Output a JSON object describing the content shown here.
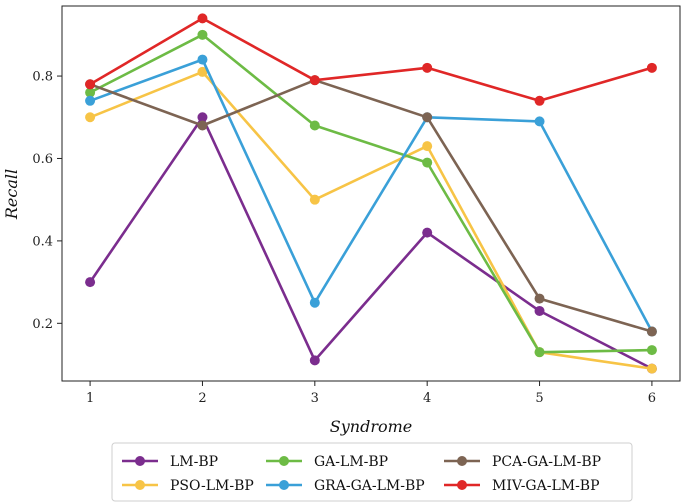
{
  "chart_data": {
    "type": "line",
    "title": "",
    "xlabel": "Syndrome",
    "ylabel": "Recall",
    "x": [
      1,
      2,
      3,
      4,
      5,
      6
    ],
    "x_tick_labels": [
      "1",
      "2",
      "3",
      "4",
      "5",
      "6"
    ],
    "xlim": [
      0.75,
      6.25
    ],
    "ylim": [
      0.06,
      0.97
    ],
    "y_ticks": [
      0.2,
      0.4,
      0.6,
      0.8
    ],
    "y_tick_labels": [
      "0.2",
      "0.4",
      "0.6",
      "0.8"
    ],
    "grid": false,
    "legend_placement": "bottom",
    "series": [
      {
        "name": "LM-BP",
        "color": "#7b2d8e",
        "values": [
          0.3,
          0.7,
          0.11,
          0.42,
          0.23,
          0.09
        ]
      },
      {
        "name": "PSO-LM-BP",
        "color": "#f7c446",
        "values": [
          0.7,
          0.81,
          0.5,
          0.63,
          0.13,
          0.09
        ]
      },
      {
        "name": "GA-LM-BP",
        "color": "#6dbb45",
        "values": [
          0.76,
          0.9,
          0.68,
          0.59,
          0.13,
          0.135
        ]
      },
      {
        "name": "GRA-GA-LM-BP",
        "color": "#3aa0d8",
        "values": [
          0.74,
          0.84,
          0.25,
          0.7,
          0.69,
          0.18
        ]
      },
      {
        "name": "PCA-GA-LM-BP",
        "color": "#7d6453",
        "values": [
          0.78,
          0.68,
          0.79,
          0.7,
          0.26,
          0.18
        ]
      },
      {
        "name": "MIV-GA-LM-BP",
        "color": "#e02727",
        "values": [
          0.78,
          0.94,
          0.79,
          0.82,
          0.74,
          0.82
        ]
      }
    ],
    "legend_order": [
      "LM-BP",
      "GA-LM-BP",
      "PCA-GA-LM-BP",
      "PSO-LM-BP",
      "GRA-GA-LM-BP",
      "MIV-GA-LM-BP"
    ]
  }
}
